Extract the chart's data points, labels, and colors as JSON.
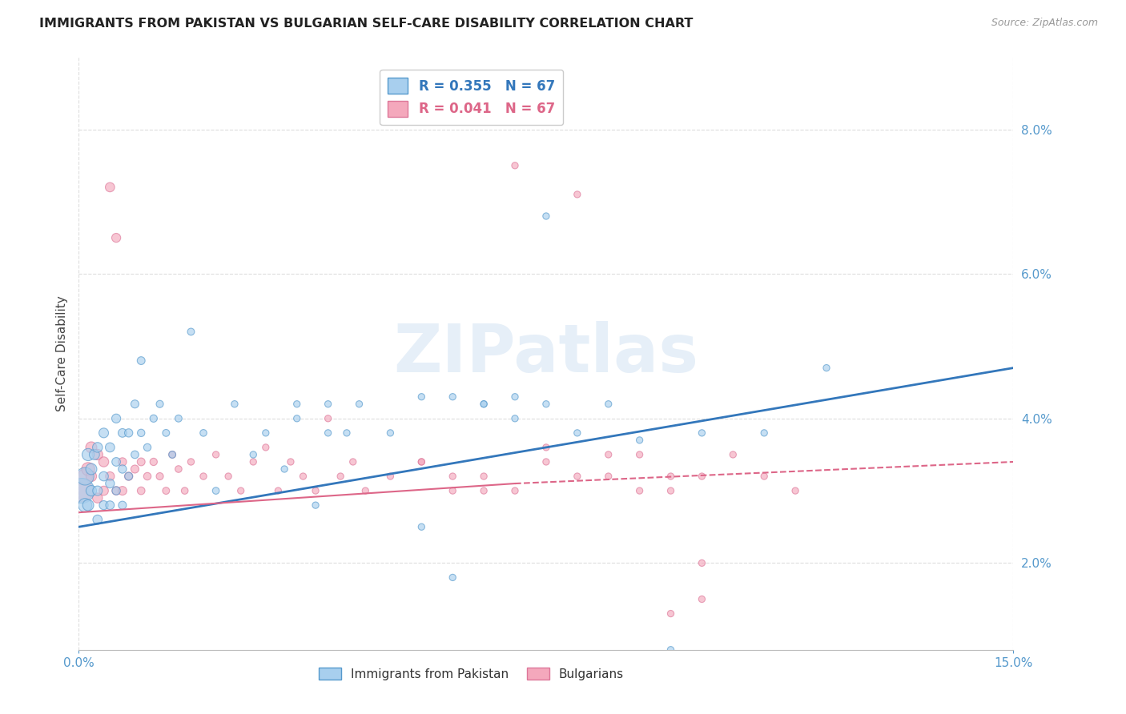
{
  "title": "IMMIGRANTS FROM PAKISTAN VS BULGARIAN SELF-CARE DISABILITY CORRELATION CHART",
  "source": "Source: ZipAtlas.com",
  "ylabel": "Self-Care Disability",
  "xlim": [
    0.0,
    0.15
  ],
  "ylim": [
    0.008,
    0.09
  ],
  "xtick_positions": [
    0.0,
    0.15
  ],
  "xtick_labels": [
    "0.0%",
    "15.0%"
  ],
  "yticks": [
    0.02,
    0.04,
    0.06,
    0.08
  ],
  "ytick_labels": [
    "2.0%",
    "4.0%",
    "6.0%",
    "8.0%"
  ],
  "series1_label": "Immigrants from Pakistan",
  "series2_label": "Bulgarians",
  "series1_color": "#A8CFEE",
  "series2_color": "#F4A8BC",
  "series1_edge_color": "#5599CC",
  "series2_edge_color": "#DD7799",
  "series1_R": "0.355",
  "series2_R": "0.041",
  "series1_N": "67",
  "series2_N": "67",
  "trend1_color": "#3377BB",
  "trend2_color": "#DD6688",
  "watermark": "ZIPatlas",
  "background_color": "#FFFFFF",
  "grid_color": "#DDDDDD",
  "title_color": "#222222",
  "axis_label_color": "#444444",
  "tick_color": "#5599CC",
  "series1_x": [
    0.0005,
    0.001,
    0.001,
    0.0015,
    0.0015,
    0.002,
    0.002,
    0.0025,
    0.003,
    0.003,
    0.003,
    0.004,
    0.004,
    0.004,
    0.005,
    0.005,
    0.005,
    0.006,
    0.006,
    0.006,
    0.007,
    0.007,
    0.007,
    0.008,
    0.008,
    0.009,
    0.009,
    0.01,
    0.01,
    0.011,
    0.012,
    0.013,
    0.014,
    0.015,
    0.016,
    0.018,
    0.02,
    0.022,
    0.025,
    0.028,
    0.03,
    0.033,
    0.035,
    0.038,
    0.04,
    0.043,
    0.045,
    0.05,
    0.055,
    0.06,
    0.065,
    0.07,
    0.075,
    0.035,
    0.04,
    0.055,
    0.06,
    0.065,
    0.07,
    0.075,
    0.08,
    0.085,
    0.09,
    0.095,
    0.1,
    0.11,
    0.12
  ],
  "series1_y": [
    0.03,
    0.032,
    0.028,
    0.035,
    0.028,
    0.033,
    0.03,
    0.035,
    0.036,
    0.03,
    0.026,
    0.038,
    0.032,
    0.028,
    0.036,
    0.031,
    0.028,
    0.04,
    0.034,
    0.03,
    0.038,
    0.033,
    0.028,
    0.038,
    0.032,
    0.042,
    0.035,
    0.048,
    0.038,
    0.036,
    0.04,
    0.042,
    0.038,
    0.035,
    0.04,
    0.052,
    0.038,
    0.03,
    0.042,
    0.035,
    0.038,
    0.033,
    0.04,
    0.028,
    0.042,
    0.038,
    0.042,
    0.038,
    0.025,
    0.018,
    0.042,
    0.043,
    0.042,
    0.042,
    0.038,
    0.043,
    0.043,
    0.042,
    0.04,
    0.068,
    0.038,
    0.042,
    0.037,
    0.008,
    0.038,
    0.038,
    0.047
  ],
  "series1_size": [
    500,
    250,
    150,
    120,
    100,
    100,
    90,
    85,
    80,
    75,
    70,
    75,
    70,
    65,
    70,
    65,
    60,
    65,
    60,
    55,
    60,
    55,
    52,
    55,
    50,
    52,
    48,
    50,
    45,
    45,
    44,
    42,
    40,
    40,
    40,
    40,
    38,
    38,
    36,
    36,
    35,
    35,
    35,
    35,
    35,
    35,
    35,
    35,
    35,
    35,
    35,
    35,
    35,
    35,
    35,
    35,
    35,
    35,
    35,
    35,
    35,
    35,
    35,
    35,
    35,
    35,
    35
  ],
  "series2_x": [
    0.0005,
    0.001,
    0.0015,
    0.002,
    0.002,
    0.003,
    0.003,
    0.004,
    0.004,
    0.005,
    0.005,
    0.006,
    0.006,
    0.007,
    0.007,
    0.008,
    0.009,
    0.01,
    0.01,
    0.011,
    0.012,
    0.013,
    0.014,
    0.015,
    0.016,
    0.017,
    0.018,
    0.02,
    0.022,
    0.024,
    0.026,
    0.028,
    0.03,
    0.032,
    0.034,
    0.036,
    0.038,
    0.04,
    0.042,
    0.044,
    0.046,
    0.05,
    0.055,
    0.06,
    0.065,
    0.07,
    0.075,
    0.08,
    0.085,
    0.09,
    0.095,
    0.1,
    0.055,
    0.06,
    0.065,
    0.07,
    0.075,
    0.08,
    0.085,
    0.09,
    0.095,
    0.1,
    0.105,
    0.11,
    0.115,
    0.095,
    0.1
  ],
  "series2_y": [
    0.03,
    0.032,
    0.033,
    0.036,
    0.032,
    0.035,
    0.029,
    0.034,
    0.03,
    0.072,
    0.032,
    0.065,
    0.03,
    0.03,
    0.034,
    0.032,
    0.033,
    0.034,
    0.03,
    0.032,
    0.034,
    0.032,
    0.03,
    0.035,
    0.033,
    0.03,
    0.034,
    0.032,
    0.035,
    0.032,
    0.03,
    0.034,
    0.036,
    0.03,
    0.034,
    0.032,
    0.03,
    0.04,
    0.032,
    0.034,
    0.03,
    0.032,
    0.034,
    0.03,
    0.032,
    0.03,
    0.034,
    0.032,
    0.035,
    0.03,
    0.032,
    0.02,
    0.034,
    0.032,
    0.03,
    0.075,
    0.036,
    0.071,
    0.032,
    0.035,
    0.03,
    0.032,
    0.035,
    0.032,
    0.03,
    0.013,
    0.015
  ],
  "series2_size": [
    400,
    180,
    140,
    100,
    90,
    90,
    80,
    80,
    70,
    70,
    65,
    65,
    58,
    62,
    55,
    55,
    52,
    50,
    48,
    46,
    44,
    42,
    40,
    40,
    38,
    38,
    36,
    36,
    35,
    35,
    35,
    35,
    35,
    35,
    35,
    35,
    35,
    35,
    35,
    35,
    35,
    35,
    35,
    35,
    35,
    35,
    35,
    35,
    35,
    35,
    35,
    35,
    35,
    35,
    35,
    35,
    35,
    35,
    35,
    35,
    35,
    35,
    35,
    35,
    35,
    35,
    35
  ],
  "trend1_x_start": 0.0,
  "trend1_y_start": 0.025,
  "trend1_x_end": 0.15,
  "trend1_y_end": 0.047,
  "trend2_x_solid_start": 0.0,
  "trend2_y_solid_start": 0.027,
  "trend2_x_solid_end": 0.07,
  "trend2_y_solid_end": 0.031,
  "trend2_x_dash_start": 0.07,
  "trend2_y_dash_start": 0.031,
  "trend2_x_dash_end": 0.15,
  "trend2_y_dash_end": 0.034
}
